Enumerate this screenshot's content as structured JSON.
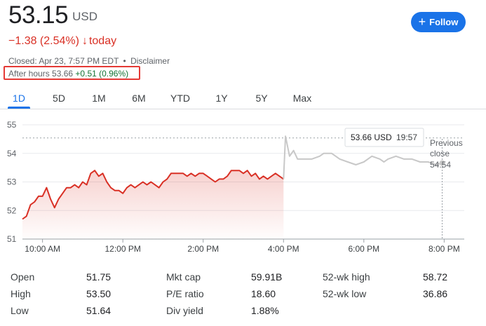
{
  "quote": {
    "price": "53.15",
    "currency": "USD",
    "change": "−1.38 (2.54%)",
    "change_arrow": "↓",
    "change_period": "today",
    "closed_text": "Closed: Apr 23, 7:57 PM EDT",
    "separator": "•",
    "disclaimer": "Disclaimer",
    "after_hours_label": "After hours",
    "after_hours_price": "53.66",
    "after_hours_change": "+0.51 (0.96%)"
  },
  "follow_button": {
    "icon": "plus-icon",
    "label": "Follow"
  },
  "tabs": [
    "1D",
    "5D",
    "1M",
    "6M",
    "YTD",
    "1Y",
    "5Y",
    "Max"
  ],
  "active_tab": "1D",
  "colors": {
    "down": "#d93025",
    "up": "#137333",
    "accent": "#1a73e8",
    "after_hours_line": "#c8c8c8"
  },
  "chart_data": {
    "type": "line",
    "y_ticks": [
      "55",
      "54",
      "53",
      "52",
      "51"
    ],
    "ylim": [
      51,
      55
    ],
    "x_ticks": [
      "10:00 AM",
      "12:00 PM",
      "2:00 PM",
      "4:00 PM",
      "6:00 PM",
      "8:00 PM"
    ],
    "x_tick_values": [
      10,
      12,
      14,
      16,
      18,
      20
    ],
    "xlim": [
      9.5,
      20.5
    ],
    "previous_close": {
      "label_line1": "Previous",
      "label_line2": "close",
      "value": "54.54"
    },
    "tooltip": {
      "price": "53.66 USD",
      "time": "19:57"
    },
    "series": [
      {
        "session": "regular",
        "points": [
          [
            9.5,
            51.7
          ],
          [
            9.6,
            51.8
          ],
          [
            9.7,
            52.2
          ],
          [
            9.8,
            52.3
          ],
          [
            9.9,
            52.5
          ],
          [
            10.0,
            52.5
          ],
          [
            10.1,
            52.8
          ],
          [
            10.2,
            52.4
          ],
          [
            10.3,
            52.1
          ],
          [
            10.4,
            52.4
          ],
          [
            10.5,
            52.6
          ],
          [
            10.6,
            52.8
          ],
          [
            10.7,
            52.8
          ],
          [
            10.8,
            52.9
          ],
          [
            10.9,
            52.8
          ],
          [
            11.0,
            53.0
          ],
          [
            11.1,
            52.9
          ],
          [
            11.2,
            53.3
          ],
          [
            11.3,
            53.4
          ],
          [
            11.4,
            53.2
          ],
          [
            11.5,
            53.3
          ],
          [
            11.6,
            53.0
          ],
          [
            11.7,
            52.8
          ],
          [
            11.8,
            52.7
          ],
          [
            11.9,
            52.7
          ],
          [
            12.0,
            52.6
          ],
          [
            12.1,
            52.8
          ],
          [
            12.2,
            52.9
          ],
          [
            12.3,
            52.8
          ],
          [
            12.4,
            52.9
          ],
          [
            12.5,
            53.0
          ],
          [
            12.6,
            52.9
          ],
          [
            12.7,
            53.0
          ],
          [
            12.8,
            52.9
          ],
          [
            12.9,
            52.8
          ],
          [
            13.0,
            53.0
          ],
          [
            13.1,
            53.1
          ],
          [
            13.2,
            53.3
          ],
          [
            13.3,
            53.3
          ],
          [
            13.4,
            53.3
          ],
          [
            13.5,
            53.3
          ],
          [
            13.6,
            53.2
          ],
          [
            13.7,
            53.3
          ],
          [
            13.8,
            53.2
          ],
          [
            13.9,
            53.3
          ],
          [
            14.0,
            53.3
          ],
          [
            14.1,
            53.2
          ],
          [
            14.2,
            53.1
          ],
          [
            14.3,
            53.0
          ],
          [
            14.4,
            53.1
          ],
          [
            14.5,
            53.1
          ],
          [
            14.6,
            53.2
          ],
          [
            14.7,
            53.4
          ],
          [
            14.8,
            53.4
          ],
          [
            14.9,
            53.4
          ],
          [
            15.0,
            53.3
          ],
          [
            15.1,
            53.4
          ],
          [
            15.2,
            53.2
          ],
          [
            15.3,
            53.3
          ],
          [
            15.4,
            53.1
          ],
          [
            15.5,
            53.2
          ],
          [
            15.6,
            53.1
          ],
          [
            15.7,
            53.2
          ],
          [
            15.8,
            53.3
          ],
          [
            15.9,
            53.2
          ],
          [
            16.0,
            53.1
          ]
        ]
      },
      {
        "session": "after_hours",
        "points": [
          [
            16.0,
            53.1
          ],
          [
            16.05,
            54.6
          ],
          [
            16.15,
            53.9
          ],
          [
            16.25,
            54.1
          ],
          [
            16.35,
            53.8
          ],
          [
            16.5,
            53.8
          ],
          [
            16.7,
            53.8
          ],
          [
            16.9,
            53.9
          ],
          [
            17.0,
            54.0
          ],
          [
            17.2,
            54.0
          ],
          [
            17.4,
            53.8
          ],
          [
            17.6,
            53.7
          ],
          [
            17.8,
            53.6
          ],
          [
            18.0,
            53.7
          ],
          [
            18.2,
            53.9
          ],
          [
            18.4,
            53.8
          ],
          [
            18.5,
            53.7
          ],
          [
            18.6,
            53.8
          ],
          [
            18.8,
            53.9
          ],
          [
            19.0,
            53.8
          ],
          [
            19.2,
            53.8
          ],
          [
            19.4,
            53.7
          ],
          [
            19.6,
            53.7
          ],
          [
            19.8,
            53.6
          ],
          [
            19.95,
            53.66
          ]
        ]
      }
    ]
  },
  "stats": [
    [
      {
        "label": "Open",
        "value": "51.75"
      },
      {
        "label": "Mkt cap",
        "value": "59.91B"
      },
      {
        "label": "52-wk high",
        "value": "58.72"
      }
    ],
    [
      {
        "label": "High",
        "value": "53.50"
      },
      {
        "label": "P/E ratio",
        "value": "18.60"
      },
      {
        "label": "52-wk low",
        "value": "36.86"
      }
    ],
    [
      {
        "label": "Low",
        "value": "51.64"
      },
      {
        "label": "Div yield",
        "value": "1.88%"
      },
      {
        "label": "",
        "value": ""
      }
    ]
  ]
}
